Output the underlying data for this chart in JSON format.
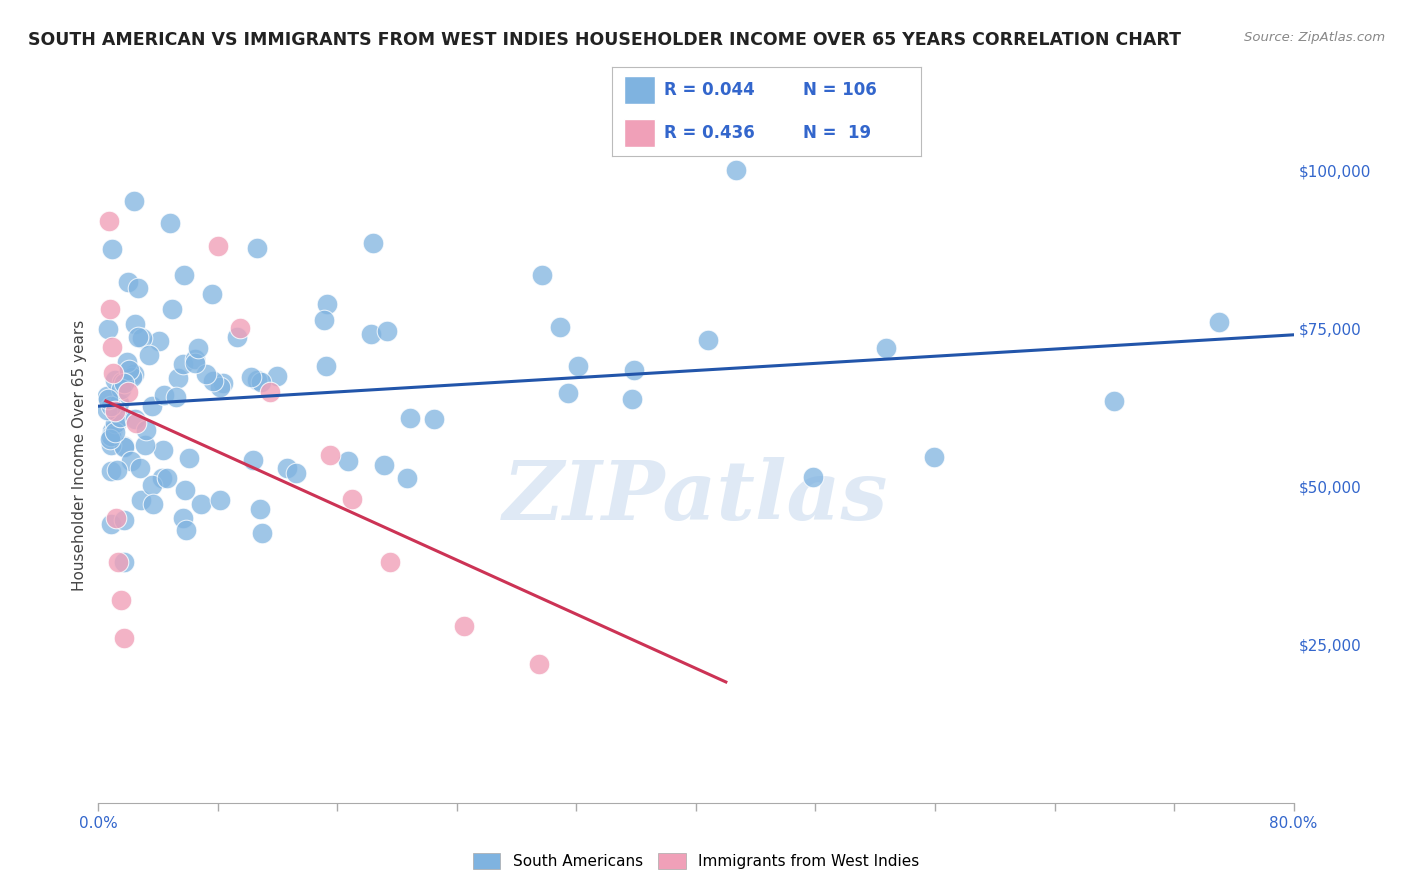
{
  "title": "SOUTH AMERICAN VS IMMIGRANTS FROM WEST INDIES HOUSEHOLDER INCOME OVER 65 YEARS CORRELATION CHART",
  "source": "Source: ZipAtlas.com",
  "ylabel": "Householder Income Over 65 years",
  "xlim": [
    0.0,
    0.8
  ],
  "ylim": [
    0,
    110000
  ],
  "ytick_positions": [
    25000,
    50000,
    75000,
    100000
  ],
  "ytick_labels": [
    "$25,000",
    "$50,000",
    "$75,000",
    "$100,000"
  ],
  "blue_color": "#7fb3e0",
  "pink_color": "#f0a0b8",
  "blue_line_color": "#2255aa",
  "pink_line_color": "#cc3355",
  "legend_R_blue": "0.044",
  "legend_N_blue": "106",
  "legend_R_pink": "0.436",
  "legend_N_pink": " 19",
  "legend_label_blue": "South Americans",
  "legend_label_pink": "Immigrants from West Indies",
  "watermark": "ZIPatlas",
  "bg_color": "#ffffff",
  "grid_color": "#cccccc",
  "title_color": "#222222",
  "source_color": "#888888",
  "axis_color": "#3366cc"
}
